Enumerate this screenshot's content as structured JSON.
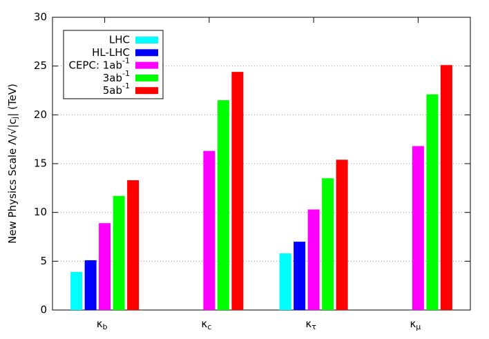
{
  "chart_data": {
    "type": "bar",
    "ylabel": "New Physics Scale Λ/√|cj| (TeV)",
    "categories": [
      "κb",
      "κc",
      "κτ",
      "κμ"
    ],
    "series": [
      {
        "name": "LHC",
        "color": "#00ffff",
        "values": [
          3.9,
          null,
          5.8,
          null
        ]
      },
      {
        "name": "HL-LHC",
        "color": "#0000ff",
        "values": [
          5.1,
          null,
          7.0,
          null
        ]
      },
      {
        "name": "CEPC: 1ab-1",
        "color": "#ff00ff",
        "values": [
          8.9,
          16.3,
          10.3,
          16.8
        ]
      },
      {
        "name": "3ab-1",
        "color": "#00ff00",
        "values": [
          11.7,
          21.5,
          13.5,
          22.1
        ]
      },
      {
        "name": "5ab-1",
        "color": "#ff0000",
        "values": [
          13.3,
          24.4,
          15.4,
          25.1
        ]
      }
    ],
    "ylim": [
      0,
      30
    ],
    "yticks": [
      0,
      5,
      10,
      15,
      20,
      25,
      30
    ],
    "grid": true,
    "legend": "upper left"
  }
}
